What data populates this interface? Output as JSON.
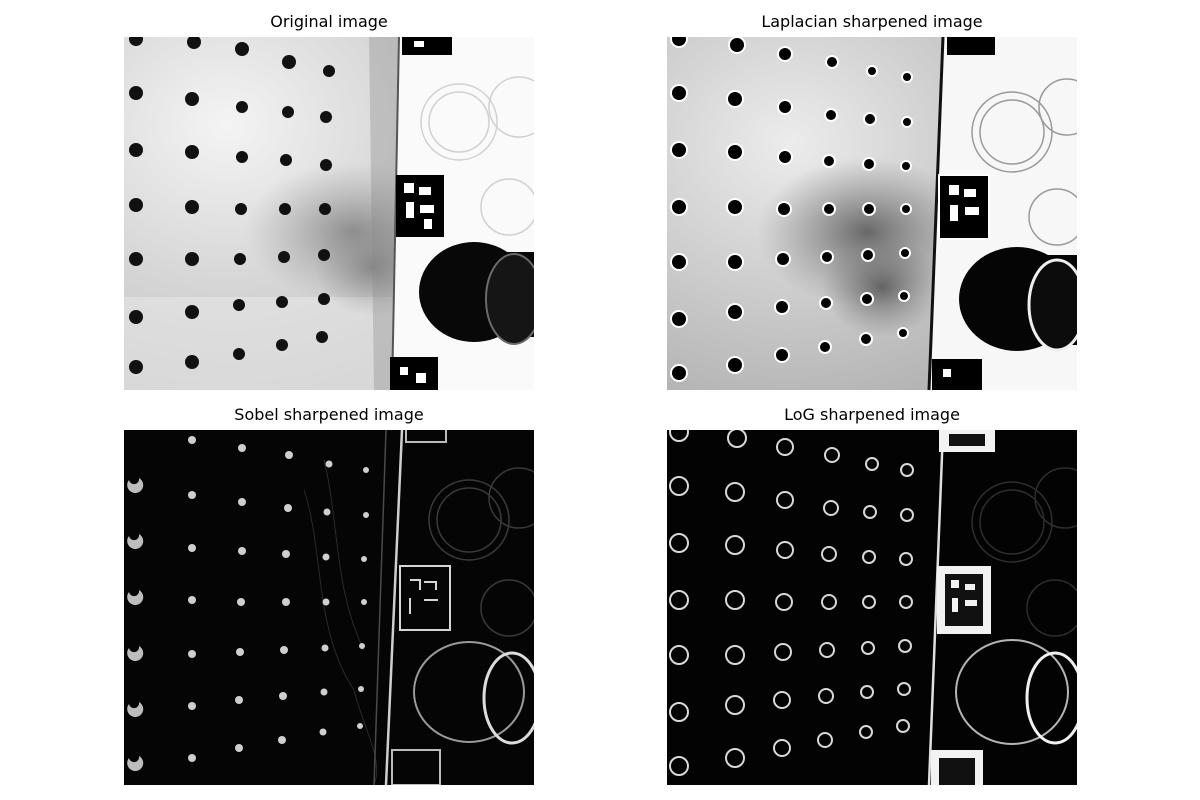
{
  "panels": [
    {
      "title": "Original image",
      "style": "original"
    },
    {
      "title": "Laplacian sharpened image",
      "style": "laplacian"
    },
    {
      "title": "Sobel sharpened image",
      "style": "sobel"
    },
    {
      "title": "LoG sharpened image",
      "style": "log"
    }
  ]
}
